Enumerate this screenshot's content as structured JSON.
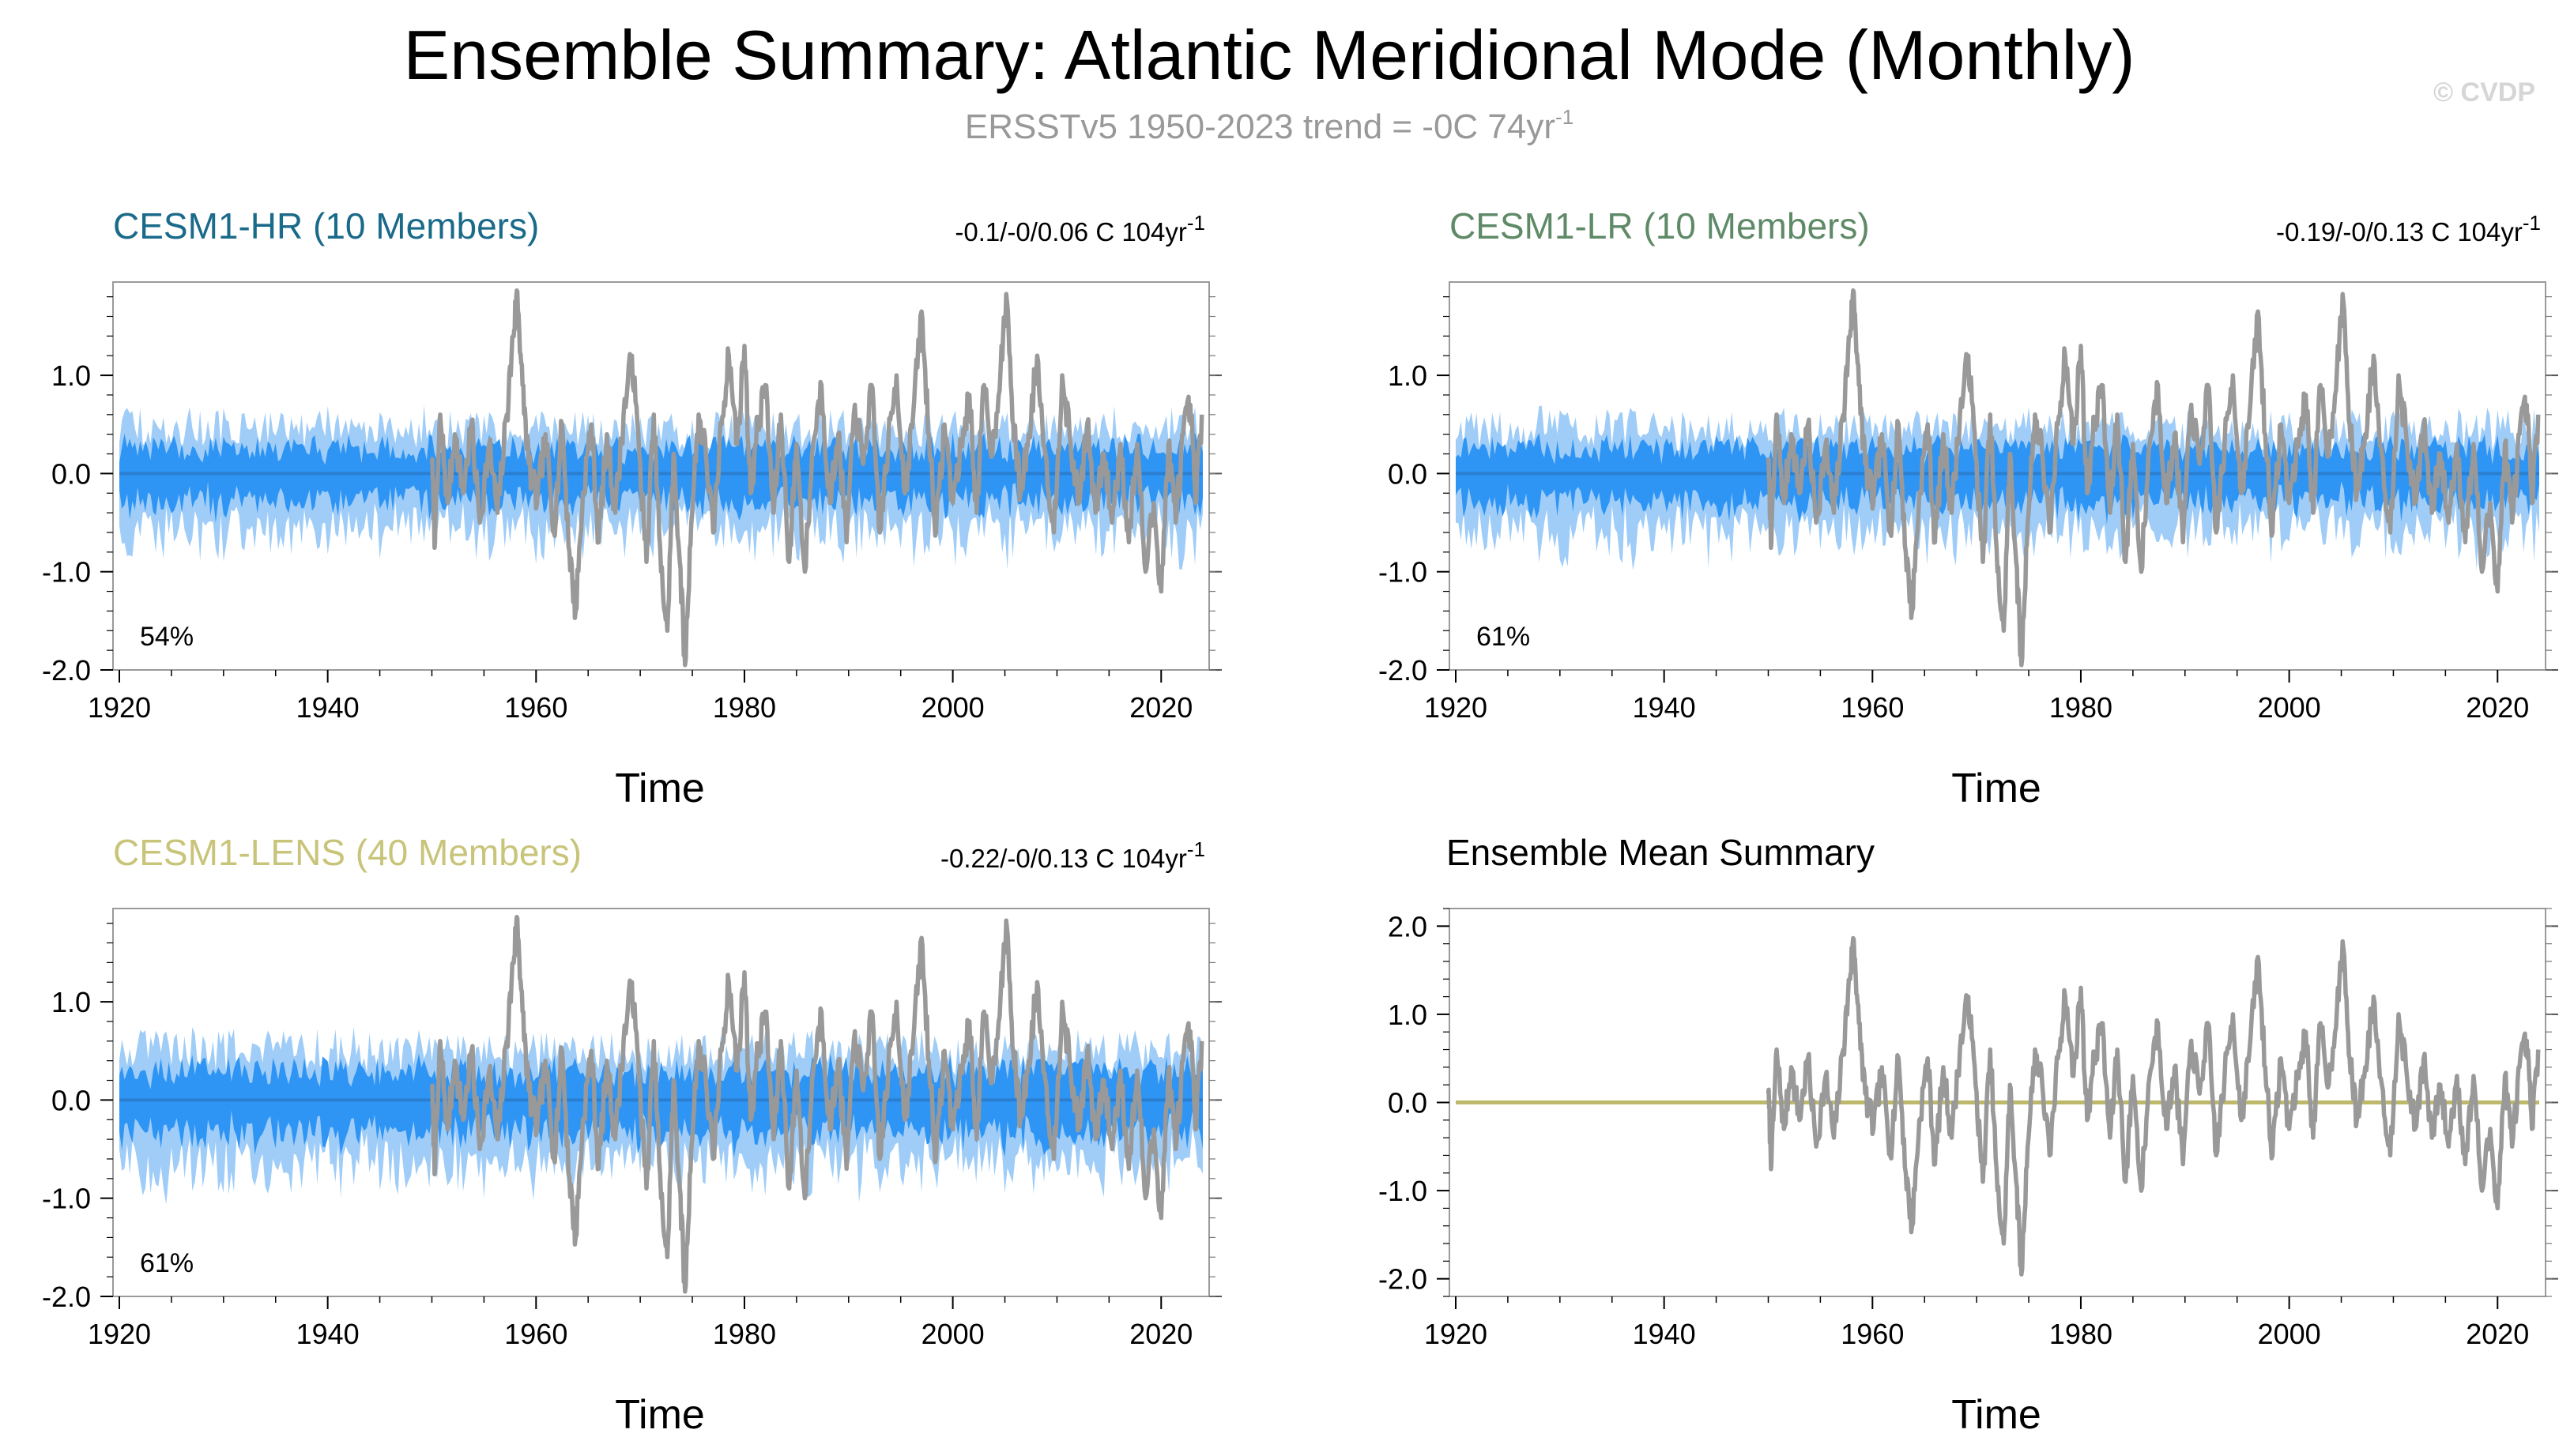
{
  "title": "Ensemble Summary: Atlantic Meridional Mode (Monthly)",
  "subtitle": {
    "text": "ERSSTv5 1950-2023 trend = -0C 74yr",
    "sup": "-1"
  },
  "watermark": "© CVDP",
  "colors": {
    "observed": "#999999",
    "ensemble_inner": "#2f95f5",
    "ensemble_outer": "#9fcdf8",
    "ensemble_mean_line": "#2a7fd0",
    "hr_title": "#1a6a8a",
    "lr_title": "#5f8a67",
    "lens_title": "#c8c47a",
    "summary_mean_line": "#bdb86a"
  },
  "chart_data": [
    {
      "id": "cesm1-hr",
      "type": "area",
      "title": "CESM1-HR (10 Members)",
      "trend": {
        "text": "-0.1/-0/0.06 C 104yr",
        "sup": "-1"
      },
      "percent": "54%",
      "xlabel": "Time",
      "xlim": [
        1920,
        2024
      ],
      "ylim": [
        -2.0,
        1.95
      ],
      "xticks": [
        "1920",
        "1940",
        "1960",
        "1980",
        "2000",
        "2020"
      ],
      "yticks": [
        "1.0",
        "0.0",
        "-1.0",
        "-2.0"
      ],
      "series": [
        {
          "name": "ensemble 10-90% spread",
          "x_start": 1920,
          "x_end": 2024,
          "inner_amplitude": 0.35,
          "outer_amplitude": 0.55
        },
        {
          "name": "ensemble mean",
          "x_start": 1920,
          "x_end": 2024,
          "values": [
            0.0,
            0.0
          ]
        },
        {
          "name": "ERSSTv5",
          "x_start": 1950,
          "x_end": 2024
        }
      ]
    },
    {
      "id": "cesm1-lr",
      "type": "area",
      "title": "CESM1-LR (10 Members)",
      "trend": {
        "text": "-0.19/-0/0.13 C 104yr",
        "sup": "-1"
      },
      "percent": "61%",
      "xlabel": "Time",
      "xlim": [
        1920,
        2024
      ],
      "ylim": [
        -2.0,
        1.95
      ],
      "xticks": [
        "1920",
        "1940",
        "1960",
        "1980",
        "2000",
        "2020"
      ],
      "yticks": [
        "1.0",
        "0.0",
        "-1.0",
        "-2.0"
      ],
      "series": [
        {
          "name": "ensemble 10-90% spread",
          "x_start": 1920,
          "x_end": 2024,
          "inner_amplitude": 0.35,
          "outer_amplitude": 0.55
        },
        {
          "name": "ensemble mean",
          "x_start": 1920,
          "x_end": 2024,
          "values": [
            0.0,
            0.0
          ]
        },
        {
          "name": "ERSSTv5",
          "x_start": 1950,
          "x_end": 2024
        }
      ]
    },
    {
      "id": "cesm1-lens",
      "type": "area",
      "title": "CESM1-LENS (40 Members)",
      "trend": {
        "text": "-0.22/-0/0.13 C 104yr",
        "sup": "-1"
      },
      "percent": "61%",
      "xlabel": "Time",
      "xlim": [
        1920,
        2024
      ],
      "ylim": [
        -2.0,
        1.95
      ],
      "xticks": [
        "1920",
        "1940",
        "1960",
        "1980",
        "2000",
        "2020"
      ],
      "yticks": [
        "1.0",
        "0.0",
        "-1.0",
        "-2.0"
      ],
      "series": [
        {
          "name": "ensemble 10-90% spread",
          "x_start": 1920,
          "x_end": 2024,
          "inner_amplitude": 0.4,
          "outer_amplitude": 0.6
        },
        {
          "name": "ensemble mean",
          "x_start": 1920,
          "x_end": 2024,
          "values": [
            0.0,
            0.0
          ]
        },
        {
          "name": "ERSSTv5",
          "x_start": 1950,
          "x_end": 2024
        }
      ]
    },
    {
      "id": "summary",
      "type": "line",
      "title": "Ensemble Mean Summary",
      "xlabel": "Time",
      "xlim": [
        1920,
        2024
      ],
      "ylim": [
        -2.2,
        2.2
      ],
      "xticks": [
        "1920",
        "1940",
        "1960",
        "1980",
        "2000",
        "2020"
      ],
      "yticks": [
        "2.0",
        "1.0",
        "0.0",
        "-1.0",
        "-2.0"
      ],
      "series": [
        {
          "name": "ensemble means",
          "x_start": 1920,
          "x_end": 2024,
          "values": [
            0.0,
            0.0
          ]
        },
        {
          "name": "ERSSTv5",
          "x_start": 1950,
          "x_end": 2024
        }
      ]
    }
  ],
  "observed_anchors": [
    [
      1950.0,
      0.1
    ],
    [
      1950.3,
      -0.7
    ],
    [
      1950.8,
      0.6
    ],
    [
      1951.5,
      -0.3
    ],
    [
      1952.2,
      0.4
    ],
    [
      1953.0,
      -0.2
    ],
    [
      1953.8,
      0.5
    ],
    [
      1954.6,
      -0.5
    ],
    [
      1955.5,
      0.3
    ],
    [
      1956.3,
      -0.4
    ],
    [
      1957.2,
      0.6
    ],
    [
      1957.8,
      1.4
    ],
    [
      1958.2,
      1.85
    ],
    [
      1958.7,
      0.9
    ],
    [
      1959.3,
      0.1
    ],
    [
      1960.1,
      -0.3
    ],
    [
      1960.9,
      0.4
    ],
    [
      1961.7,
      -0.6
    ],
    [
      1962.5,
      0.5
    ],
    [
      1963.2,
      -0.8
    ],
    [
      1963.8,
      -1.4
    ],
    [
      1964.5,
      -0.2
    ],
    [
      1965.3,
      0.5
    ],
    [
      1966.0,
      -0.7
    ],
    [
      1966.8,
      0.4
    ],
    [
      1967.6,
      -0.4
    ],
    [
      1968.4,
      0.6
    ],
    [
      1969.2,
      1.2
    ],
    [
      1969.9,
      0.2
    ],
    [
      1970.6,
      -0.9
    ],
    [
      1971.3,
      0.6
    ],
    [
      1972.0,
      -1.0
    ],
    [
      1972.6,
      -1.6
    ],
    [
      1973.2,
      0.2
    ],
    [
      1973.8,
      -0.9
    ],
    [
      1974.3,
      -1.95
    ],
    [
      1974.9,
      -0.5
    ],
    [
      1975.6,
      0.6
    ],
    [
      1976.3,
      0.2
    ],
    [
      1977.0,
      -0.6
    ],
    [
      1977.8,
      0.5
    ],
    [
      1978.5,
      1.2
    ],
    [
      1979.3,
      0.3
    ],
    [
      1980.0,
      1.3
    ],
    [
      1980.6,
      -0.2
    ],
    [
      1981.3,
      0.5
    ],
    [
      1982.0,
      0.9
    ],
    [
      1982.8,
      -0.4
    ],
    [
      1983.5,
      0.6
    ],
    [
      1984.3,
      -0.9
    ],
    [
      1985.0,
      0.3
    ],
    [
      1985.8,
      -1.0
    ],
    [
      1986.6,
      0.3
    ],
    [
      1987.4,
      0.9
    ],
    [
      1988.2,
      -0.3
    ],
    [
      1989.0,
      0.4
    ],
    [
      1989.8,
      -0.7
    ],
    [
      1990.6,
      0.7
    ],
    [
      1991.4,
      0.1
    ],
    [
      1992.2,
      0.9
    ],
    [
      1993.0,
      -0.6
    ],
    [
      1993.8,
      0.3
    ],
    [
      1994.6,
      1.0
    ],
    [
      1995.4,
      -0.2
    ],
    [
      1996.2,
      0.6
    ],
    [
      1997.0,
      1.65
    ],
    [
      1997.7,
      0.4
    ],
    [
      1998.4,
      -0.6
    ],
    [
      1999.2,
      0.5
    ],
    [
      2000.0,
      -0.3
    ],
    [
      2000.8,
      0.3
    ],
    [
      2001.6,
      0.8
    ],
    [
      2002.3,
      -0.4
    ],
    [
      2003.0,
      0.9
    ],
    [
      2003.8,
      0.2
    ],
    [
      2004.6,
      1.1
    ],
    [
      2005.2,
      1.75
    ],
    [
      2005.8,
      0.5
    ],
    [
      2006.5,
      -0.2
    ],
    [
      2007.3,
      0.4
    ],
    [
      2008.1,
      1.2
    ],
    [
      2008.9,
      0.2
    ],
    [
      2009.7,
      -0.6
    ],
    [
      2010.5,
      1.0
    ],
    [
      2011.3,
      0.3
    ],
    [
      2012.1,
      -0.3
    ],
    [
      2012.9,
      0.5
    ],
    [
      2013.7,
      -0.4
    ],
    [
      2014.5,
      0.2
    ],
    [
      2015.3,
      -0.5
    ],
    [
      2016.1,
      0.3
    ],
    [
      2016.9,
      -0.7
    ],
    [
      2017.7,
      0.3
    ],
    [
      2018.5,
      -1.0
    ],
    [
      2019.3,
      -0.3
    ],
    [
      2020.0,
      -1.2
    ],
    [
      2020.7,
      0.3
    ],
    [
      2021.4,
      -0.5
    ],
    [
      2022.1,
      0.4
    ],
    [
      2022.8,
      0.7
    ],
    [
      2023.3,
      -0.3
    ],
    [
      2023.9,
      0.6
    ]
  ]
}
